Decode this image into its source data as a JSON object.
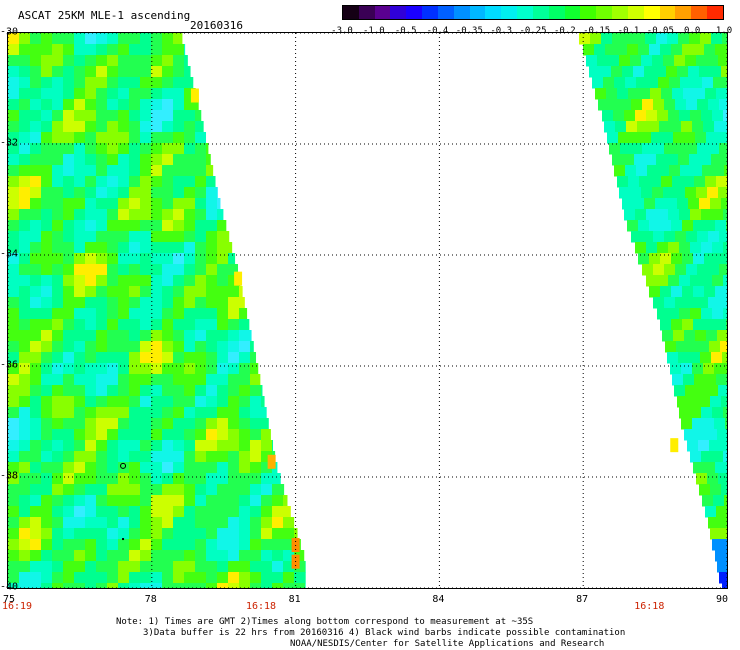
{
  "header": {
    "title": "ASCAT 25KM MLE-1 ascending",
    "date": "20160316"
  },
  "colorbar": {
    "labels": [
      "-3.0",
      "-1.0",
      "-0.5",
      "-0.4",
      "-0.35",
      "-0.3",
      "-0.25",
      "-0.2",
      "-0.15",
      "-0.1",
      "-0.05",
      "0.0",
      "1.0"
    ],
    "colors": [
      "#150015",
      "#5a0090",
      "#1a00ff",
      "#0050ff",
      "#00a8ff",
      "#00e5ff",
      "#00ffc8",
      "#00ff5a",
      "#28ff00",
      "#aaff00",
      "#ffee00",
      "#ff8c00",
      "#ff1e00"
    ]
  },
  "map": {
    "lat_labels": [
      "-30",
      "-32",
      "-34",
      "-36",
      "-38",
      "-40"
    ],
    "lon_labels": [
      "75",
      "78",
      "81",
      "84",
      "87",
      "90"
    ],
    "lon_range": [
      75,
      90
    ],
    "lat_range": [
      -40,
      -30
    ],
    "time_labels": [
      {
        "text": "16:19",
        "lon": 75
      },
      {
        "text": "16:18",
        "lon": 80.3
      },
      {
        "text": "16:18",
        "lon": 88.4
      }
    ],
    "swaths": [
      {
        "name": "left-swath",
        "edge_lons": [
          75,
          75
        ],
        "right_edge": [
          [
            -30,
            78.6
          ],
          [
            -31.4,
            79.0
          ],
          [
            -33.0,
            79.4
          ],
          [
            -34.3,
            79.8
          ],
          [
            -36.0,
            80.2
          ],
          [
            -37.8,
            80.6
          ],
          [
            -39.5,
            81.2
          ],
          [
            -40,
            81.2
          ]
        ]
      },
      {
        "name": "right-swath",
        "left_edge": [
          [
            -30,
            86.9
          ],
          [
            -31.5,
            87.4
          ],
          [
            -33.4,
            87.9
          ],
          [
            -35.2,
            88.6
          ],
          [
            -37.2,
            89.1
          ],
          [
            -38.8,
            89.6
          ],
          [
            -40,
            89.9
          ]
        ],
        "edge_lons": [
          90,
          90
        ]
      }
    ]
  },
  "notes": {
    "line1": "Note: 1) Times are GMT 2)Times along bottom correspond to measurement at ~35S",
    "line2": "3)Data buffer is 22 hrs from 20160316 4) Black wind barbs indicate possible contamination",
    "line3": "NOAA/NESDIS/Center for Satellite Applications and Research"
  }
}
